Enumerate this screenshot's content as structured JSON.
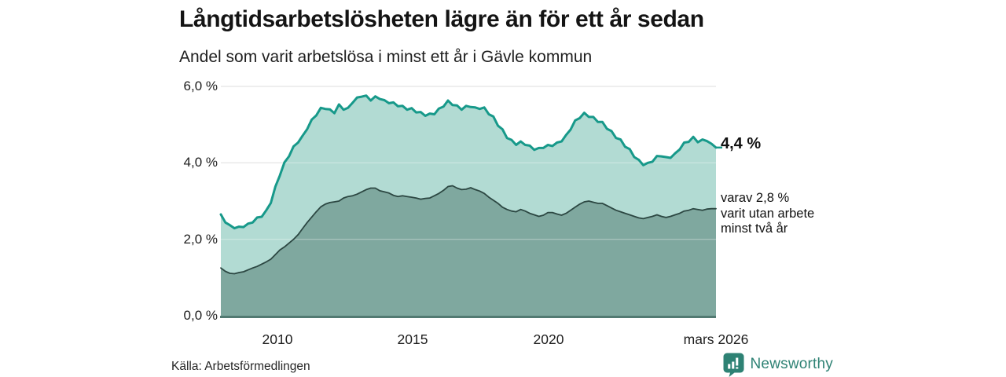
{
  "header": {
    "title": "Långtidsarbetslösheten lägre än för ett år sedan",
    "subtitle": "Andel som varit arbetslösa i minst ett år i Gävle kommun"
  },
  "chart_data": {
    "type": "area",
    "title": "Långtidsarbetslösheten lägre än för ett år sedan",
    "subtitle": "Andel som varit arbetslösa i minst ett år i Gävle kommun",
    "unit": "%",
    "xlim": [
      2007.92,
      2026.21
    ],
    "ylim": [
      0,
      6
    ],
    "grid": true,
    "points_evenly_spaced": true,
    "yticks": [
      {
        "value": 0,
        "label": "0,0 %"
      },
      {
        "value": 2,
        "label": "2,0 %"
      },
      {
        "value": 4,
        "label": "4,0 %"
      },
      {
        "value": 6,
        "label": "6,0 %"
      }
    ],
    "xticks": [
      {
        "value": 2010,
        "label": "2010"
      },
      {
        "value": 2015,
        "label": "2015"
      },
      {
        "value": 2020,
        "label": "2020"
      },
      {
        "value": 2026.21,
        "label": "mars 2026"
      }
    ],
    "series": [
      {
        "name": "Andel som varit arbetslösa minst ett år",
        "line_color": "#17998a",
        "fill_color": "#b0dad2",
        "last_value": 4.4,
        "values": [
          2.65,
          2.44,
          2.37,
          2.29,
          2.33,
          2.32,
          2.41,
          2.44,
          2.57,
          2.59,
          2.76,
          2.95,
          3.38,
          3.67,
          4.01,
          4.17,
          4.43,
          4.53,
          4.71,
          4.88,
          5.13,
          5.24,
          5.44,
          5.41,
          5.4,
          5.3,
          5.53,
          5.39,
          5.44,
          5.57,
          5.71,
          5.73,
          5.76,
          5.63,
          5.74,
          5.67,
          5.64,
          5.56,
          5.58,
          5.48,
          5.49,
          5.39,
          5.43,
          5.32,
          5.33,
          5.23,
          5.29,
          5.27,
          5.42,
          5.47,
          5.63,
          5.51,
          5.5,
          5.39,
          5.49,
          5.46,
          5.45,
          5.41,
          5.45,
          5.27,
          5.21,
          4.97,
          4.88,
          4.65,
          4.6,
          4.47,
          4.56,
          4.47,
          4.45,
          4.34,
          4.39,
          4.39,
          4.47,
          4.44,
          4.53,
          4.56,
          4.73,
          4.87,
          5.11,
          5.17,
          5.31,
          5.2,
          5.2,
          5.07,
          5.07,
          4.89,
          4.83,
          4.65,
          4.61,
          4.42,
          4.36,
          4.15,
          4.08,
          3.94,
          4.0,
          4.03,
          4.18,
          4.17,
          4.15,
          4.13,
          4.25,
          4.35,
          4.53,
          4.55,
          4.68,
          4.54,
          4.61,
          4.57,
          4.5,
          4.4
        ]
      },
      {
        "name": "varav varit utan arbete minst två år",
        "line_color": "#2c4742",
        "fill_color": "#7da69d",
        "last_value": 2.8,
        "values": [
          1.25,
          1.16,
          1.11,
          1.1,
          1.13,
          1.15,
          1.2,
          1.25,
          1.29,
          1.35,
          1.41,
          1.48,
          1.6,
          1.72,
          1.8,
          1.9,
          2.0,
          2.12,
          2.28,
          2.44,
          2.58,
          2.72,
          2.85,
          2.92,
          2.96,
          2.98,
          3.0,
          3.08,
          3.12,
          3.14,
          3.18,
          3.24,
          3.3,
          3.34,
          3.34,
          3.27,
          3.24,
          3.21,
          3.15,
          3.12,
          3.14,
          3.12,
          3.1,
          3.08,
          3.05,
          3.07,
          3.08,
          3.14,
          3.2,
          3.28,
          3.38,
          3.4,
          3.34,
          3.3,
          3.31,
          3.35,
          3.3,
          3.26,
          3.2,
          3.1,
          3.02,
          2.94,
          2.84,
          2.78,
          2.74,
          2.72,
          2.78,
          2.74,
          2.68,
          2.64,
          2.6,
          2.63,
          2.7,
          2.7,
          2.66,
          2.63,
          2.68,
          2.76,
          2.84,
          2.92,
          2.98,
          3.0,
          2.97,
          2.94,
          2.94,
          2.88,
          2.82,
          2.76,
          2.72,
          2.68,
          2.64,
          2.6,
          2.56,
          2.54,
          2.57,
          2.6,
          2.64,
          2.6,
          2.57,
          2.6,
          2.64,
          2.68,
          2.74,
          2.76,
          2.8,
          2.78,
          2.76,
          2.79,
          2.8,
          2.8
        ]
      }
    ],
    "annotations": {
      "latest_value_label": "4,4 %",
      "secondary_line1": "varav 2,8 %",
      "secondary_line2": "varit utan arbete",
      "secondary_line3": "minst två år"
    }
  },
  "footer": {
    "source": "Källa: Arbetsförmedlingen",
    "brand": "Newsworthy"
  },
  "colors": {
    "accent_teal": "#17998a",
    "light_fill": "#b0dad2",
    "dark_fill": "#7da69d",
    "dark_line": "#2c4742",
    "baseline": "#527a72",
    "gridline": "#d8d8d8",
    "brand_teal": "#2e8274"
  }
}
